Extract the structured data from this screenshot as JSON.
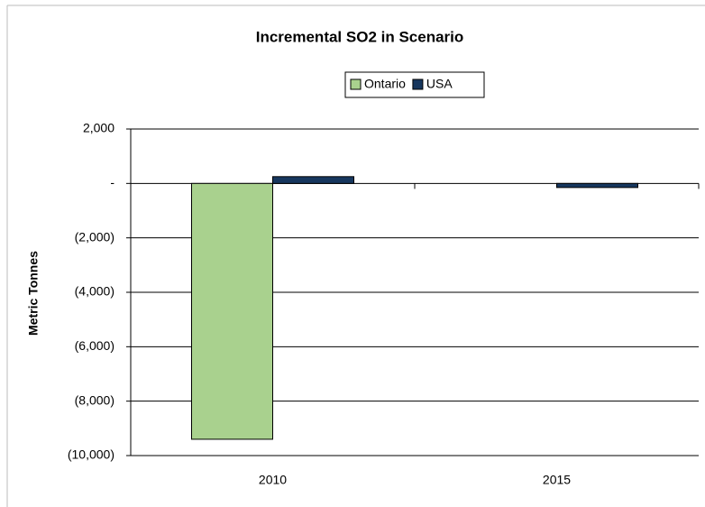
{
  "chart_data": {
    "type": "bar",
    "title": "Incremental SO2 in Scenario",
    "y_label": "Metric Tonnes",
    "categories": [
      "2010",
      "2015"
    ],
    "series": [
      {
        "name": "Ontario",
        "color": "#a9d18e",
        "values": [
          -9400,
          0
        ]
      },
      {
        "name": "USA",
        "color": "#17375e",
        "values": [
          250,
          -150
        ]
      }
    ],
    "ylim": [
      -10000,
      2000
    ],
    "yticks": [
      {
        "value": 2000,
        "label": "2,000"
      },
      {
        "value": 0,
        "label": "-"
      },
      {
        "value": -2000,
        "label": "(2,000)"
      },
      {
        "value": -4000,
        "label": "(4,000)"
      },
      {
        "value": -6000,
        "label": "(6,000)"
      },
      {
        "value": -8000,
        "label": "(8,000)"
      },
      {
        "value": -10000,
        "label": "(10,000)"
      }
    ],
    "grid": true,
    "legend": "top"
  }
}
